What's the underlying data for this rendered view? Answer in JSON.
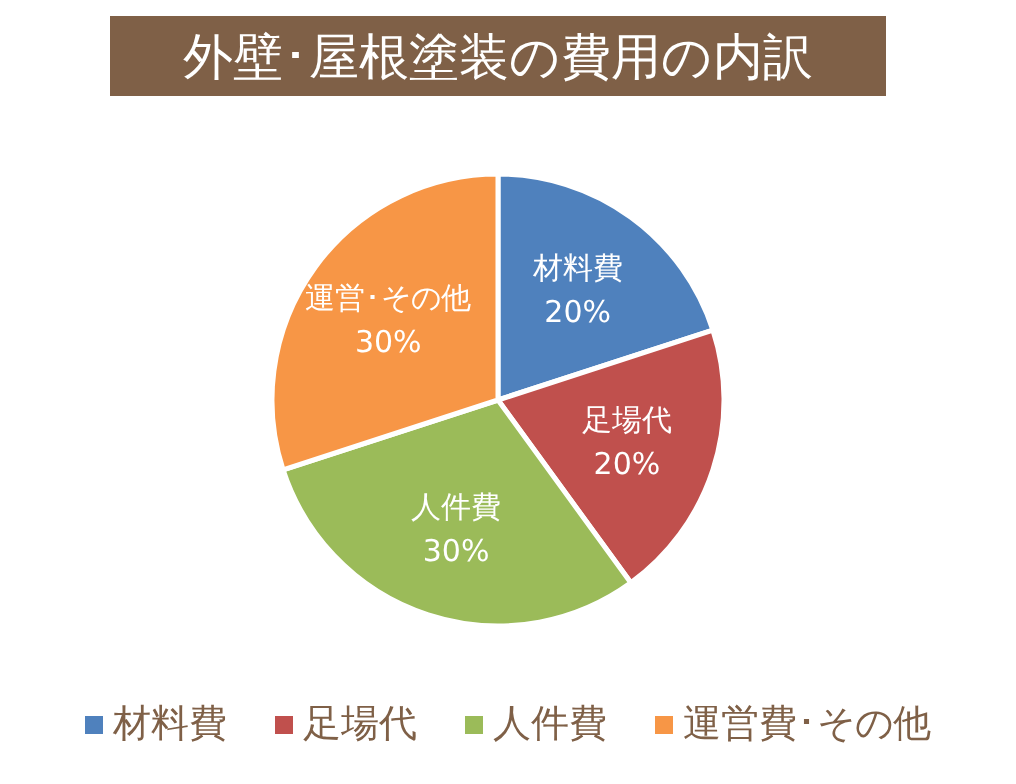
{
  "chart_data": {
    "type": "pie",
    "title": "外壁･屋根塗装の費用の内訳",
    "categories": [
      "材料費",
      "足場代",
      "人件費",
      "運営費･その他"
    ],
    "values": [
      20,
      20,
      30,
      30
    ],
    "colors": [
      "#4f81bd",
      "#c0504d",
      "#9bbb59",
      "#f79646"
    ],
    "value_labels": [
      "材料費\n20%",
      "足場代\n20%",
      "人件費\n30%",
      "運営･その他\n30%"
    ],
    "legend": "bottom"
  }
}
